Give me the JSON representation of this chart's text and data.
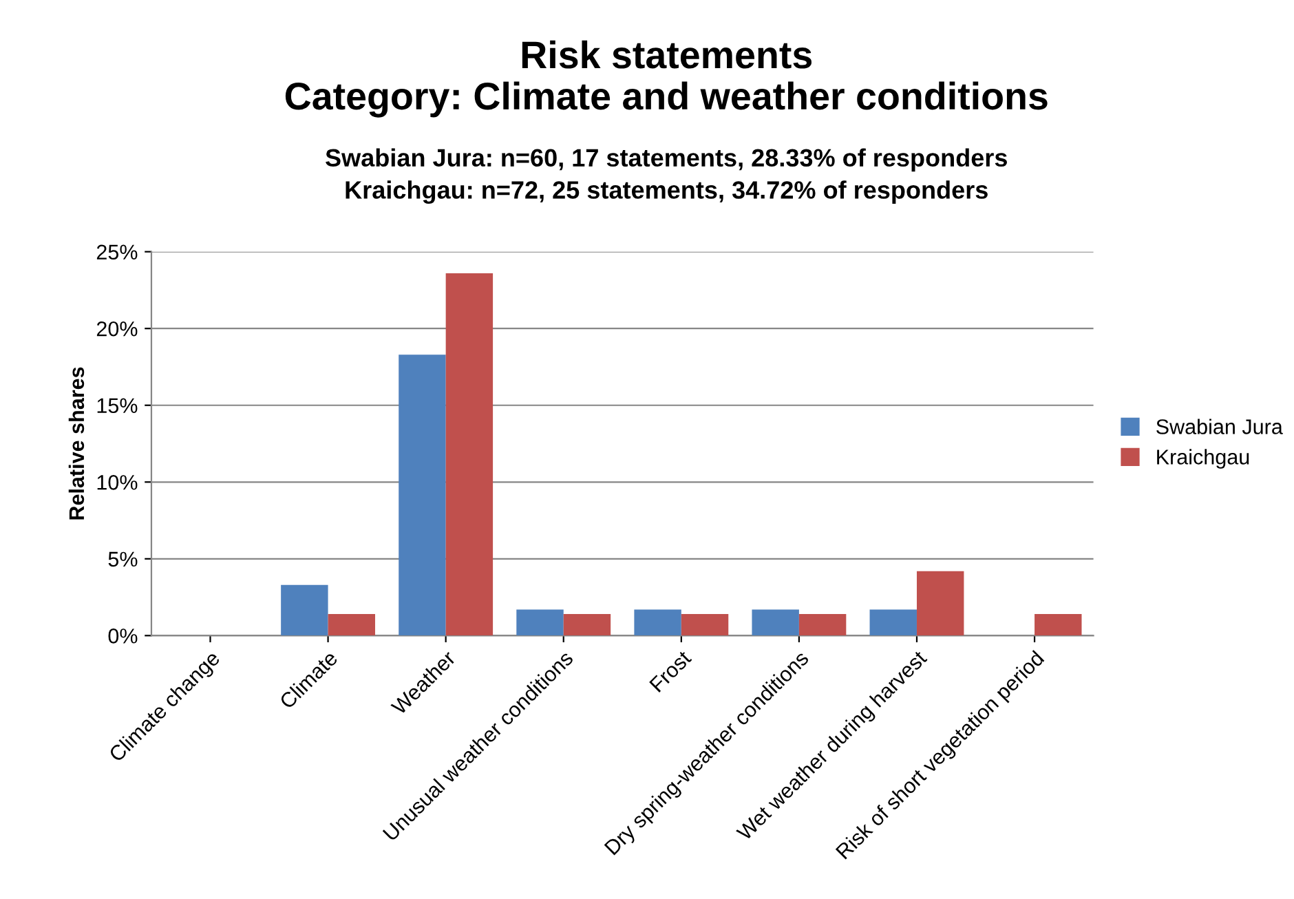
{
  "chart_data": {
    "type": "bar",
    "title": "Risk statements\nCategory: Climate and weather conditions",
    "subtitle": "Swabian Jura: n=60, 17 statements, 28.33% of responders\nKraichgau: n=72, 25 statements, 34.72% of responders",
    "ylabel": "Relative shares",
    "categories": [
      "Climate change",
      "Climate",
      "Weather",
      "Unusual weather conditions",
      "Frost",
      "Dry spring-weather conditions",
      "Wet weather during harvest",
      "Risk of short vegetation period"
    ],
    "series": [
      {
        "name": "Swabian Jura",
        "color": "#4f81bd",
        "values": [
          0,
          3.3,
          18.3,
          1.7,
          1.7,
          1.7,
          1.7,
          0
        ]
      },
      {
        "name": "Kraichgau",
        "color": "#c0504d",
        "values": [
          0,
          1.4,
          23.6,
          1.4,
          1.4,
          1.4,
          4.2,
          1.4
        ]
      }
    ],
    "ylim": [
      0,
      25
    ],
    "yticks": [
      {
        "value": 0,
        "label": "0%"
      },
      {
        "value": 5,
        "label": "5%"
      },
      {
        "value": 10,
        "label": "10%"
      },
      {
        "value": 15,
        "label": "15%"
      },
      {
        "value": 20,
        "label": "20%"
      },
      {
        "value": 25,
        "label": "25%"
      }
    ],
    "grid": "y",
    "legend": "right"
  }
}
